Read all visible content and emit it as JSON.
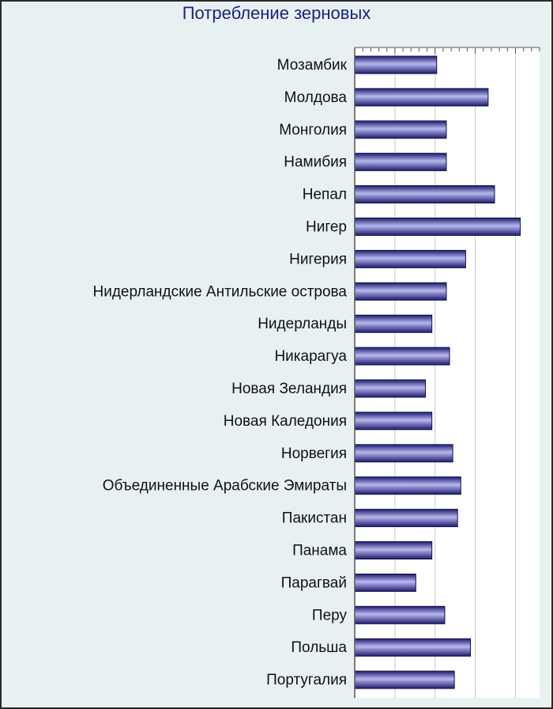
{
  "chart_data": {
    "type": "bar",
    "orientation": "horizontal",
    "title": "Потребление зерновых",
    "categories": [
      "Мозамбик",
      "Молдова",
      "Монголия",
      "Намибия",
      "Непал",
      "Нигер",
      "Нигерия",
      "Нидерландские Антильские острова",
      "Нидерланды",
      "Никарагуа",
      "Новая Зеландия",
      "Новая Каледония",
      "Норвегия",
      "Объединенные Арабские Эмираты",
      "Пакистан",
      "Панама",
      "Парагвай",
      "Перу",
      "Польша",
      "Португалия"
    ],
    "values": [
      102,
      166,
      114,
      114,
      174,
      206,
      138,
      114,
      96,
      118,
      88,
      96,
      122,
      132,
      128,
      96,
      76,
      112,
      144,
      124
    ],
    "xlim": [
      0,
      230
    ],
    "grid": true,
    "tick_labels_visible": false,
    "colors": {
      "bar": "#2b2b8c",
      "bar_highlight": "#b8b8f0",
      "background": "#e8f1f2",
      "plot_background": "#ffffff",
      "title": "#1a237e"
    }
  }
}
